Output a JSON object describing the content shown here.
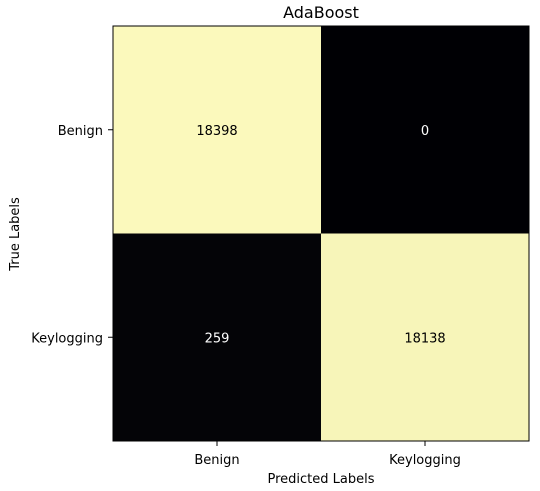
{
  "chart_data": {
    "type": "heatmap",
    "title": "AdaBoost",
    "xlabel": "Predicted Labels",
    "ylabel": "True Labels",
    "x_categories": [
      "Benign",
      "Keylogging"
    ],
    "y_categories": [
      "Benign",
      "Keylogging"
    ],
    "values": [
      [
        18398,
        0
      ],
      [
        259,
        18138
      ]
    ],
    "grid": false,
    "colormap": "magma",
    "colors": {
      "high": "#fbf9bc",
      "low": "#000004"
    }
  }
}
